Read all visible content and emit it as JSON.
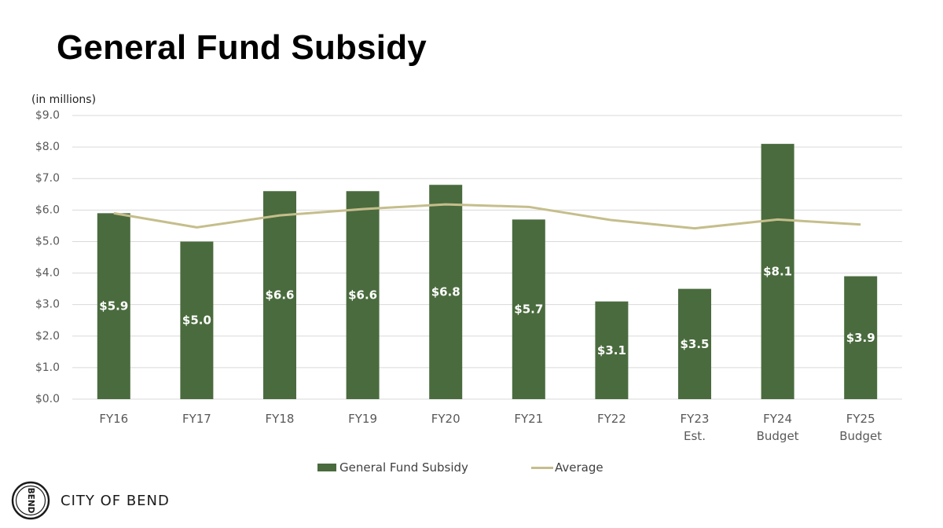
{
  "page": {
    "title": "General Fund Subsidy",
    "organization": "CITY OF BEND",
    "logo_text": "BEND"
  },
  "colors": {
    "bar": "#4a6b3e",
    "average_line": "#c5be8c",
    "grid": "#d9d9d9",
    "axis_text": "#595959",
    "bar_label": "#ffffff"
  },
  "chart_data": {
    "type": "bar",
    "title": "General Fund Subsidy",
    "units_note": "(in millions)",
    "categories": [
      [
        "FY16"
      ],
      [
        "FY17"
      ],
      [
        "FY18"
      ],
      [
        "FY19"
      ],
      [
        "FY20"
      ],
      [
        "FY21"
      ],
      [
        "FY22"
      ],
      [
        "FY23",
        "Est."
      ],
      [
        "FY24",
        "Budget"
      ],
      [
        "FY25",
        "Budget"
      ]
    ],
    "series": [
      {
        "name": "General Fund Subsidy",
        "type": "bar",
        "values": [
          5.9,
          5.0,
          6.6,
          6.6,
          6.8,
          5.7,
          3.1,
          3.5,
          8.1,
          3.9
        ],
        "labels": [
          "$5.9",
          "$5.0",
          "$6.6",
          "$6.6",
          "$6.8",
          "$5.7",
          "$3.1",
          "$3.5",
          "$8.1",
          "$3.9"
        ]
      },
      {
        "name": "Average",
        "type": "line",
        "values": [
          5.9,
          5.45,
          5.83,
          6.03,
          6.18,
          6.1,
          5.68,
          5.42,
          5.7,
          5.54
        ]
      }
    ],
    "ylim": [
      0,
      9
    ],
    "yticks": [
      0,
      1,
      2,
      3,
      4,
      5,
      6,
      7,
      8,
      9
    ],
    "ytick_labels": [
      "$0.0",
      "$1.0",
      "$2.0",
      "$3.0",
      "$4.0",
      "$5.0",
      "$6.0",
      "$7.0",
      "$8.0",
      "$9.0"
    ],
    "grid": true,
    "legend": "bottom-center"
  }
}
